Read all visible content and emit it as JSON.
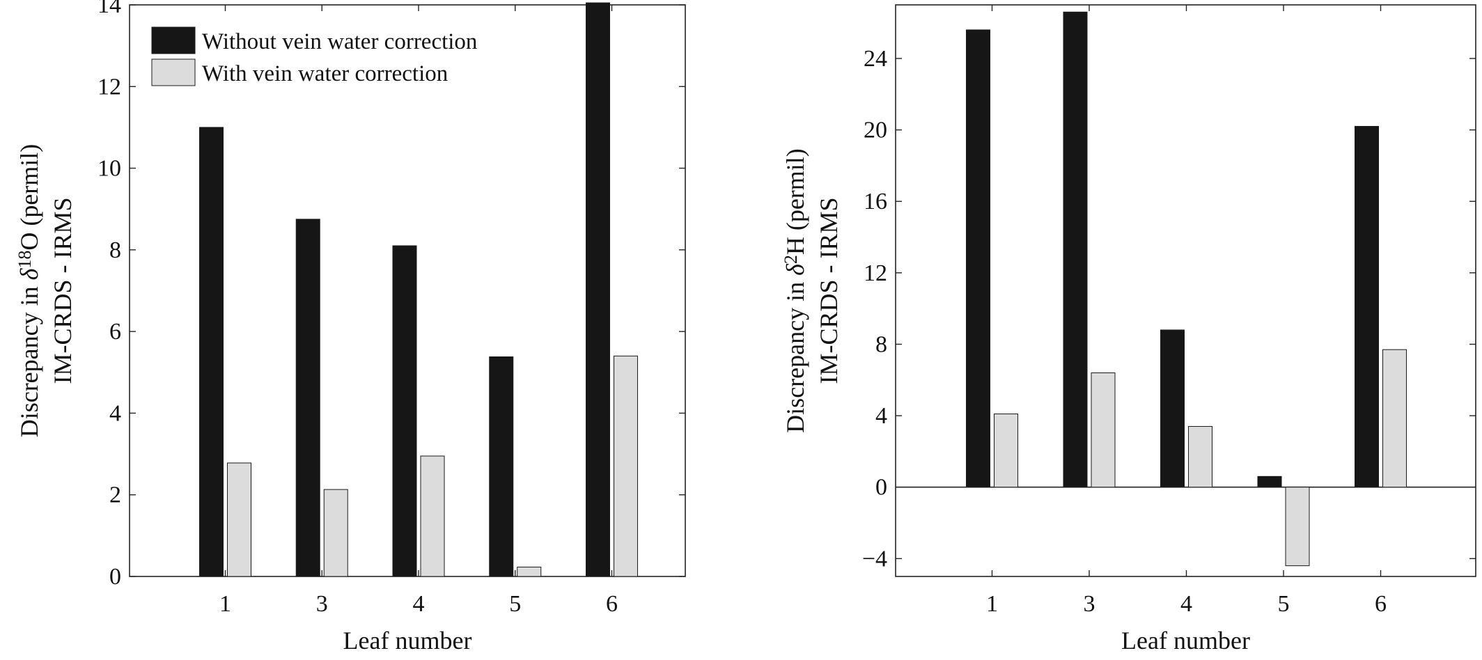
{
  "chart_data": [
    {
      "type": "bar",
      "xlabel": "Leaf number",
      "ylabel_line1_prefix": "Discrepancy in ",
      "ylabel_line1_delta": "δ",
      "ylabel_line1_sup": "18",
      "ylabel_line1_element": "O",
      "ylabel_line1_suffix": " (permil)",
      "ylabel_line2": "IM-CRDS - IRMS",
      "categories": [
        "1",
        "3",
        "4",
        "5",
        "6"
      ],
      "ylim": [
        0,
        14
      ],
      "yticks": [
        0,
        2,
        4,
        6,
        8,
        10,
        12,
        14
      ],
      "ytick_labels": [
        "0",
        "2",
        "4",
        "6",
        "8",
        "10",
        "12",
        "14"
      ],
      "grid": false,
      "legend": "top-left",
      "series": [
        {
          "name": "Without vein water correction",
          "color": "#161616",
          "values": [
            11.0,
            8.75,
            8.1,
            5.38,
            14.05
          ]
        },
        {
          "name": "With vein water correction",
          "color": "#dcdcdc",
          "values": [
            2.78,
            2.13,
            2.95,
            0.23,
            5.4
          ]
        }
      ]
    },
    {
      "type": "bar",
      "xlabel": "Leaf number",
      "ylabel_line1_prefix": "Discrepancy in ",
      "ylabel_line1_delta": "δ",
      "ylabel_line1_sup": "2",
      "ylabel_line1_element": "H",
      "ylabel_line1_suffix": " (permil)",
      "ylabel_line2": "IM-CRDS - IRMS",
      "categories": [
        "1",
        "3",
        "4",
        "5",
        "6"
      ],
      "ylim": [
        -5,
        27
      ],
      "yticks": [
        -4,
        0,
        4,
        8,
        12,
        16,
        20,
        24
      ],
      "ytick_labels": [
        "−4",
        "0",
        "4",
        "8",
        "12",
        "16",
        "20",
        "24"
      ],
      "grid": false,
      "legend": "none",
      "zero_line": true,
      "series": [
        {
          "name": "Without vein water correction",
          "color": "#161616",
          "values": [
            25.6,
            26.6,
            8.8,
            0.6,
            20.2
          ]
        },
        {
          "name": "With vein water correction",
          "color": "#dcdcdc",
          "values": [
            4.1,
            6.4,
            3.4,
            -4.4,
            7.7
          ]
        }
      ]
    }
  ]
}
